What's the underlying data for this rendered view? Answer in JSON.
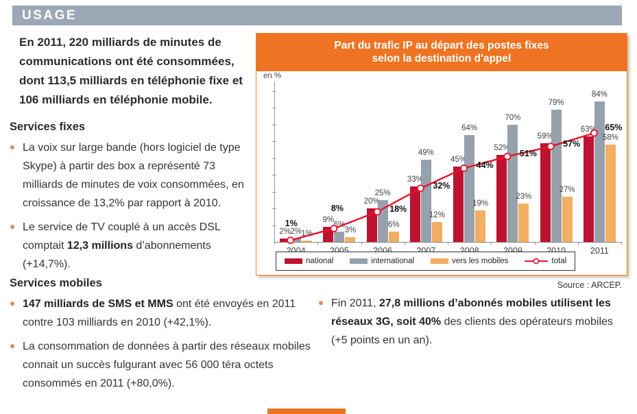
{
  "page": {
    "section_title": "USAGE",
    "intro": "En 2011, 220 milliards de minutes de communications ont été consommées, dont 113,5 milliards en téléphonie fixe et 106 milliards en téléphonie mobile.",
    "fixed_services": {
      "heading": "Services fixes",
      "bullets": [
        {
          "runs": [
            {
              "t": "La voix sur large bande (hors logiciel de type Skype) à partir des box a représenté 73 milliards de minutes de voix consommées, en croissance de 13,2% par rapport à 2010."
            }
          ]
        },
        {
          "runs": [
            {
              "t": "Le service de TV couplé à un accès DSL comptait "
            },
            {
              "t": "12,3 millions",
              "b": 1
            },
            {
              "t": " d’abonnements (+14,7%)."
            }
          ]
        }
      ]
    },
    "mobile_services": {
      "heading": "Services mobiles",
      "bullets": [
        {
          "runs": [
            {
              "t": "147 milliards de SMS et MMS",
              "b": 1
            },
            {
              "t": " ont été envoyés en 2011 contre 103 milliards en 2010 (+42,1%)."
            }
          ]
        },
        {
          "runs": [
            {
              "t": "La consommation de données à partir des réseaux mobiles connait un succès fulgurant avec 56 000 téra octets consommés en 2011 (+80,0%)."
            }
          ]
        }
      ]
    },
    "right_bullet": {
      "runs": [
        {
          "t": "Fin 2011, "
        },
        {
          "t": "27,8 millions d’abonnés mobiles utilisent les réseaux 3G, soit 40%",
          "b": 1
        },
        {
          "t": " des clients des opérateurs mobiles (+5 points en un an)."
        }
      ]
    },
    "source": "Source : ARCEP."
  },
  "chart_data": {
    "type": "bar",
    "title_lines": [
      "Part du trafic IP au départ des postes fixes",
      "selon la destination d'appel"
    ],
    "unit_label": "en %",
    "categories": [
      "2004",
      "2005",
      "2006",
      "2007",
      "2008",
      "2009",
      "2010",
      "2011"
    ],
    "series": [
      {
        "name": "national",
        "type": "bar",
        "color": "#be1232",
        "values": [
          2,
          9,
          20,
          33,
          45,
          52,
          59,
          63
        ]
      },
      {
        "name": "international",
        "type": "bar",
        "color": "#97a1ab",
        "values": [
          2,
          6,
          25,
          49,
          64,
          70,
          79,
          84
        ]
      },
      {
        "name": "vers les mobiles",
        "type": "bar",
        "color": "#f2ae63",
        "values": [
          1,
          3,
          6,
          12,
          19,
          23,
          27,
          58
        ]
      },
      {
        "name": "total",
        "type": "line",
        "color": "#e8132b",
        "values": [
          1,
          8,
          18,
          32,
          44,
          51,
          57,
          65
        ]
      }
    ],
    "ylim": [
      0,
      90
    ],
    "grid": false,
    "legend_position": "bottom"
  },
  "colors": {
    "section_bar": "#9da8b6",
    "chart_header": "#ee7322",
    "bullet": "#dd8a5d",
    "national": "#be1232",
    "international": "#97a1ab",
    "vers_les_mobiles": "#f2ae63",
    "total_line": "#e8132b"
  }
}
